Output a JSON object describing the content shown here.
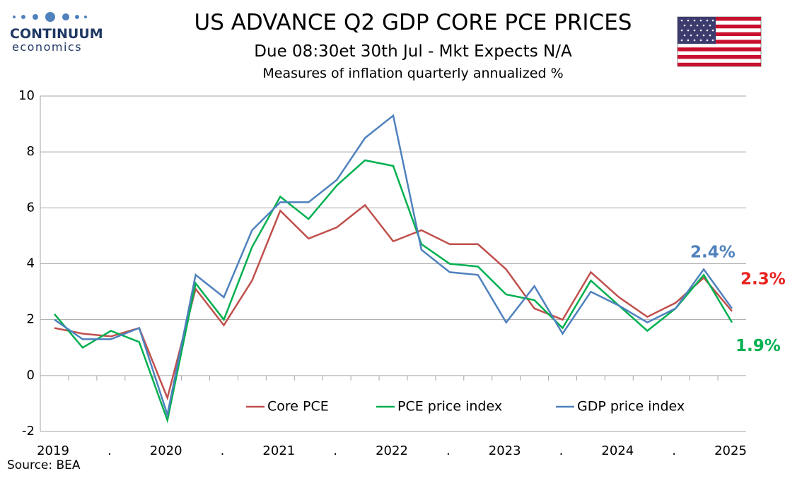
{
  "brand": {
    "name": "CONTINUUM",
    "tagline": "economics"
  },
  "chart_data": {
    "type": "line",
    "title": "US ADVANCE Q2  GDP CORE PCE PRICES",
    "subtitle": "Due 08:30et 30th Jul  - Mkt Expects N/A",
    "caption": "Measures of inflation quarterly annualized %",
    "source": "Source: BEA",
    "categories": [
      "2019",
      null,
      ".",
      null,
      "2020",
      null,
      ".",
      null,
      "2021",
      null,
      ".",
      null,
      "2022",
      null,
      ".",
      null,
      "2023",
      null,
      ".",
      null,
      "2024",
      null,
      ".",
      null,
      "2025"
    ],
    "series": [
      {
        "name": "Core PCE",
        "color": "#c0504d",
        "label_color": "#e8221f",
        "values": [
          1.7,
          1.5,
          1.4,
          1.7,
          -0.8,
          3.1,
          1.8,
          3.4,
          5.9,
          4.9,
          5.3,
          6.1,
          4.8,
          5.2,
          4.7,
          4.7,
          3.8,
          2.4,
          2.0,
          3.7,
          2.8,
          2.1,
          2.6,
          3.5,
          2.3
        ],
        "value_labels": [
          null,
          null,
          null,
          null,
          null,
          null,
          null,
          null,
          null,
          null,
          null,
          null,
          null,
          null,
          null,
          null,
          null,
          null,
          null,
          null,
          null,
          null,
          null,
          null,
          "2.3%"
        ]
      },
      {
        "name": "PCE price index",
        "color": "#00b050",
        "label_color": "#00b050",
        "values": [
          2.2,
          1.0,
          1.6,
          1.2,
          -1.6,
          3.3,
          2.0,
          4.6,
          6.4,
          5.6,
          6.8,
          7.7,
          7.5,
          4.7,
          4.0,
          3.9,
          2.9,
          2.7,
          1.7,
          3.4,
          2.5,
          1.6,
          2.4,
          3.6,
          1.9
        ],
        "value_labels": [
          null,
          null,
          null,
          null,
          null,
          null,
          null,
          null,
          null,
          null,
          null,
          null,
          null,
          null,
          null,
          null,
          null,
          null,
          null,
          null,
          null,
          null,
          null,
          null,
          "1.9%"
        ]
      },
      {
        "name": "GDP price index",
        "color": "#4f81bd",
        "label_color": "#4f81bd",
        "values": [
          2.0,
          1.3,
          1.3,
          1.7,
          -1.4,
          3.6,
          2.8,
          5.2,
          6.2,
          6.2,
          7.0,
          8.5,
          9.3,
          4.5,
          3.7,
          3.6,
          1.9,
          3.2,
          1.5,
          3.0,
          2.5,
          1.9,
          2.4,
          3.8,
          2.4
        ],
        "value_labels": [
          null,
          null,
          null,
          null,
          null,
          null,
          null,
          null,
          null,
          null,
          null,
          null,
          null,
          null,
          null,
          null,
          null,
          null,
          null,
          null,
          null,
          null,
          null,
          null,
          "2.4%"
        ]
      }
    ],
    "ylim": [
      -2,
      10
    ],
    "yticks": [
      -2,
      0,
      2,
      4,
      6,
      8,
      10
    ],
    "grid": true,
    "legend": "bottom-center"
  }
}
